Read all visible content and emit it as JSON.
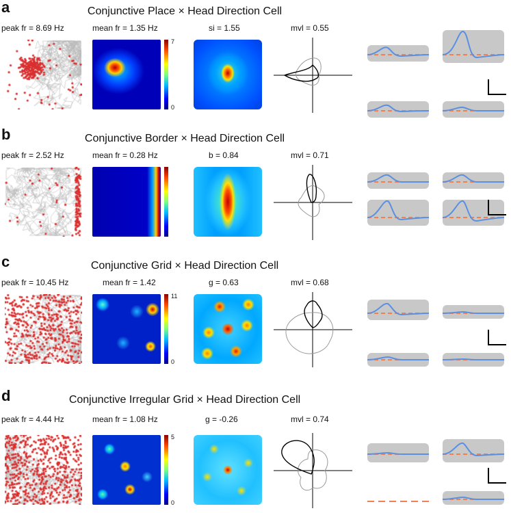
{
  "panels": [
    {
      "letter": "a",
      "title": "Conjunctive Place × Head Direction Cell",
      "peak": "peak fr = 8.69 Hz",
      "mean": "mean fr = 1.35 Hz",
      "score": "si = 1.55",
      "mvl": "mvl = 0.55",
      "cbar_max": "7",
      "cbar_min": "0"
    },
    {
      "letter": "b",
      "title": "Conjunctive Border × Head Direction Cell",
      "peak": "peak fr = 2.52 Hz",
      "mean": "mean fr = 0.28 Hz",
      "score": "b = 0.84",
      "mvl": "mvl = 0.71",
      "cbar_max": "",
      "cbar_min": ""
    },
    {
      "letter": "c",
      "title": "Conjunctive Grid × Head Direction Cell",
      "peak": "peak fr = 10.45 Hz",
      "mean": "mean fr = 1.42",
      "score": "g = 0.63",
      "mvl": "mvl = 0.68",
      "cbar_max": "11",
      "cbar_min": "0"
    },
    {
      "letter": "d",
      "title": "Conjunctive Irregular Grid × Head Direction Cell",
      "peak": "peak fr = 4.44 Hz",
      "mean": "mean fr = 1.08 Hz",
      "score": "g = -0.26",
      "mvl": "mvl = 0.74",
      "cbar_max": "5",
      "cbar_min": "0"
    }
  ],
  "colors": {
    "spike": "#d93030",
    "path": "#b8b8b8",
    "wave_mean": "#5b8fe0",
    "wave_thresh": "#f08050",
    "wave_bg": "#c8c8c8"
  }
}
